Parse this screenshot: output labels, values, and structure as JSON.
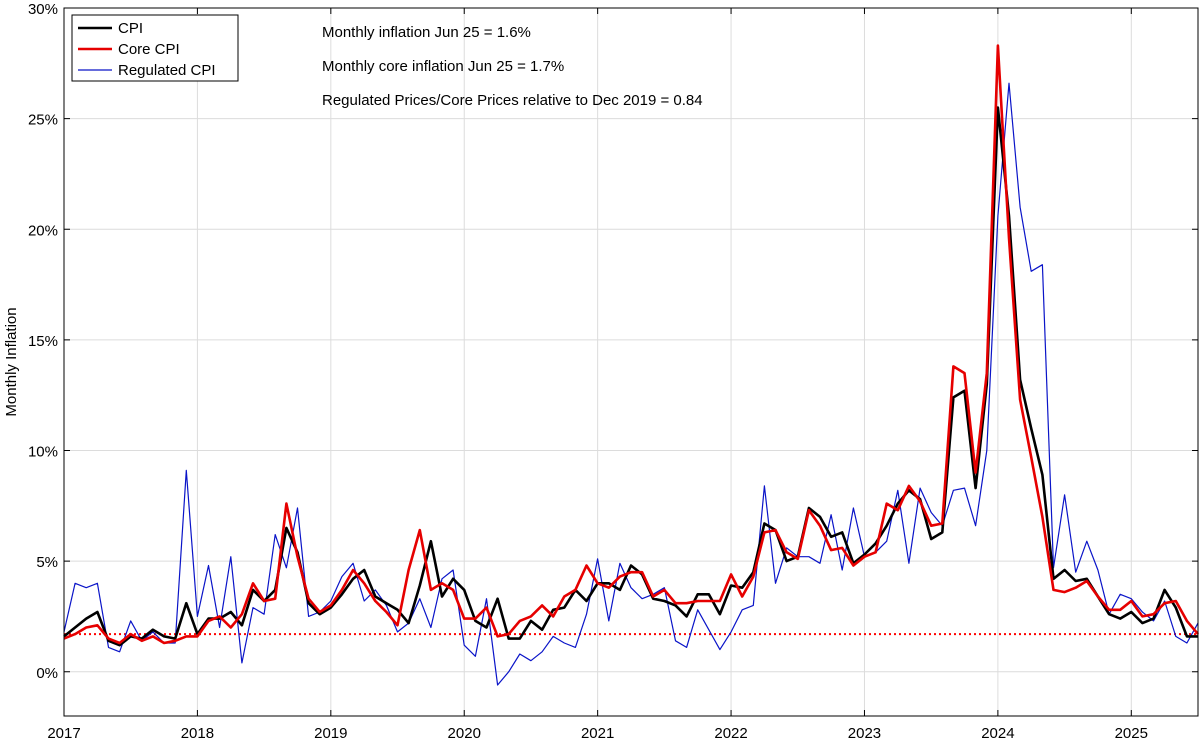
{
  "chart_data": {
    "type": "line",
    "title": "",
    "xlabel": "",
    "ylabel": "Monthly Inflation",
    "xlim": [
      2017.0,
      2025.5
    ],
    "ylim": [
      -2,
      30
    ],
    "x_ticks": [
      2017,
      2018,
      2019,
      2020,
      2021,
      2022,
      2023,
      2024,
      2025
    ],
    "x_tick_labels": [
      "2017",
      "2018",
      "2019",
      "2020",
      "2021",
      "2022",
      "2023",
      "2024",
      "2025"
    ],
    "y_ticks": [
      0,
      5,
      10,
      15,
      20,
      25,
      30
    ],
    "y_tick_labels": [
      "0%",
      "5%",
      "10%",
      "15%",
      "20%",
      "25%",
      "30%"
    ],
    "grid": true,
    "legend_position": "top-left",
    "start": 2017.0,
    "step": 0.0833333,
    "reference_line": {
      "value": 1.7,
      "color": "#ff0000",
      "style": "dotted"
    },
    "annotations": [
      "Monthly inflation Jun 25 = 1.6%",
      "Monthly core inflation Jun 25 = 1.7%",
      "Regulated Prices/Core Prices relative to Dec 2019  = 0.84"
    ],
    "series": [
      {
        "name": "CPI",
        "color": "#000000",
        "values": [
          1.6,
          2.0,
          2.4,
          2.7,
          1.4,
          1.2,
          1.6,
          1.5,
          1.9,
          1.6,
          1.5,
          3.1,
          1.7,
          2.4,
          2.4,
          2.7,
          2.1,
          3.7,
          3.2,
          3.7,
          6.5,
          5.4,
          3.1,
          2.6,
          2.9,
          3.5,
          4.2,
          4.6,
          3.4,
          3.1,
          2.8,
          2.2,
          3.9,
          5.9,
          3.4,
          4.2,
          3.7,
          2.3,
          2.0,
          3.3,
          1.5,
          1.5,
          2.3,
          1.9,
          2.8,
          2.9,
          3.7,
          3.2,
          4.0,
          4.0,
          3.7,
          4.8,
          4.4,
          3.3,
          3.2,
          3.0,
          2.5,
          3.5,
          3.5,
          2.6,
          3.9,
          3.8,
          4.5,
          6.7,
          6.4,
          5.0,
          5.2,
          7.4,
          7.0,
          6.1,
          6.3,
          4.9,
          5.3,
          5.8,
          6.6,
          7.6,
          8.2,
          7.8,
          6.0,
          6.3,
          12.4,
          12.7,
          8.3,
          13.0,
          25.5,
          20.6,
          13.2,
          11.0,
          8.9,
          4.2,
          4.6,
          4.1,
          4.2,
          3.4,
          2.6,
          2.4,
          2.7,
          2.2,
          2.4,
          3.7,
          2.9,
          1.6,
          1.6
        ]
      },
      {
        "name": "Core CPI",
        "color": "#e60000",
        "values": [
          1.5,
          1.7,
          2.0,
          2.1,
          1.5,
          1.3,
          1.7,
          1.4,
          1.6,
          1.3,
          1.4,
          1.6,
          1.6,
          2.3,
          2.5,
          2.0,
          2.6,
          4.0,
          3.2,
          3.3,
          7.6,
          5.2,
          3.3,
          2.7,
          3.0,
          3.7,
          4.6,
          4.0,
          3.2,
          2.7,
          2.1,
          4.6,
          6.4,
          3.7,
          4.0,
          3.7,
          2.4,
          2.4,
          2.9,
          1.6,
          1.7,
          2.3,
          2.5,
          3.0,
          2.5,
          3.4,
          3.7,
          4.8,
          4.0,
          3.8,
          4.3,
          4.5,
          4.5,
          3.4,
          3.7,
          3.1,
          3.1,
          3.2,
          3.2,
          3.2,
          4.4,
          3.4,
          4.3,
          6.3,
          6.4,
          5.4,
          5.1,
          7.3,
          6.6,
          5.5,
          5.6,
          4.8,
          5.2,
          5.4,
          7.6,
          7.3,
          8.4,
          7.7,
          6.6,
          6.7,
          13.8,
          13.5,
          9.0,
          13.5,
          28.3,
          19.6,
          12.3,
          9.7,
          7.0,
          3.7,
          3.6,
          3.8,
          4.1,
          3.4,
          2.8,
          2.8,
          3.2,
          2.5,
          2.6,
          3.1,
          3.2,
          2.3,
          1.7
        ]
      },
      {
        "name": "Regulated CPI",
        "color": "#0a14c8",
        "values": [
          1.8,
          4.0,
          3.8,
          4.0,
          1.1,
          0.9,
          2.3,
          1.4,
          1.8,
          1.3,
          1.3,
          9.1,
          2.5,
          4.8,
          2.0,
          5.2,
          0.4,
          2.9,
          2.6,
          6.2,
          4.7,
          7.4,
          2.5,
          2.7,
          3.2,
          4.3,
          4.9,
          3.2,
          3.7,
          3.0,
          1.8,
          2.2,
          3.3,
          2.0,
          4.2,
          4.6,
          1.2,
          0.7,
          3.3,
          -0.6,
          0.0,
          0.8,
          0.5,
          0.9,
          1.6,
          1.3,
          1.1,
          2.6,
          5.1,
          2.3,
          4.9,
          3.8,
          3.3,
          3.5,
          3.8,
          1.4,
          1.1,
          2.8,
          1.9,
          1.0,
          1.8,
          2.8,
          3.0,
          8.4,
          4.0,
          5.6,
          5.2,
          5.2,
          4.9,
          7.1,
          4.6,
          7.4,
          5.2,
          5.4,
          5.9,
          8.2,
          4.9,
          8.3,
          7.2,
          6.6,
          8.2,
          8.3,
          6.6,
          10.0,
          20.6,
          26.6,
          21.0,
          18.1,
          18.4,
          4.7,
          8.0,
          4.5,
          5.9,
          4.6,
          2.6,
          3.5,
          3.3,
          2.7,
          2.3,
          3.2,
          1.6,
          1.3,
          2.2
        ]
      }
    ]
  }
}
